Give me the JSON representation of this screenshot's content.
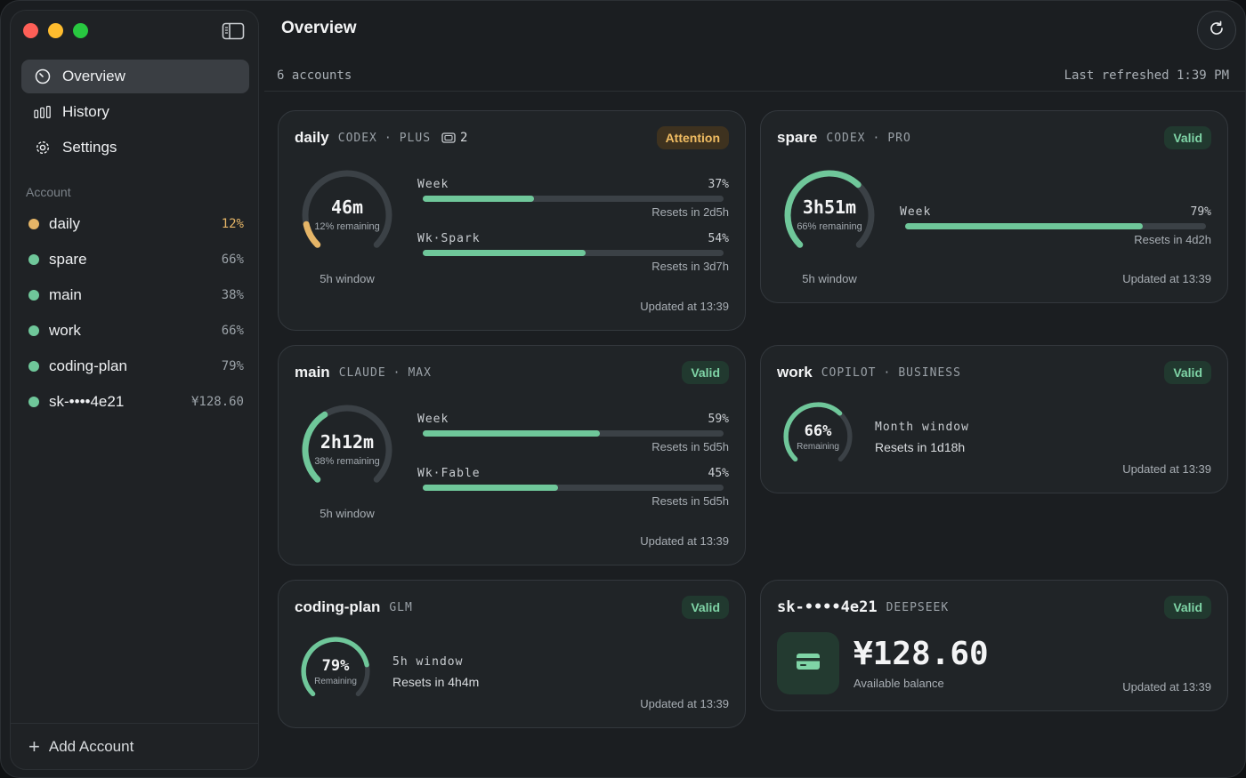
{
  "main_title": "Overview",
  "nav": [
    {
      "label": "Overview",
      "icon": "gauge-icon",
      "active": true
    },
    {
      "label": "History",
      "icon": "bar-chart-icon",
      "active": false
    },
    {
      "label": "Settings",
      "icon": "gear-icon",
      "active": false
    }
  ],
  "account_heading": "Account",
  "accounts": [
    {
      "name": "daily",
      "value": "12%",
      "status_color": "#e5b567"
    },
    {
      "name": "spare",
      "value": "66%",
      "status_color": "#6fc79a"
    },
    {
      "name": "main",
      "value": "38%",
      "status_color": "#6fc79a"
    },
    {
      "name": "work",
      "value": "66%",
      "status_color": "#6fc79a"
    },
    {
      "name": "coding-plan",
      "value": "79%",
      "status_color": "#6fc79a"
    },
    {
      "name": "sk-••••4e21",
      "value": "¥128.60",
      "status_color": "#6fc79a"
    }
  ],
  "add_account": "Add Account",
  "subbar": {
    "count": "6 accounts",
    "refreshed": "Last refreshed 1:39 PM"
  },
  "colors": {
    "accent": "#6fc79a",
    "warn": "#e5b567",
    "track": "#3b4146"
  },
  "cards": {
    "daily": {
      "name": "daily",
      "provider": "CODEX",
      "plan": "PLUS",
      "seats": "2",
      "badge": "Attention",
      "gauge": {
        "main": "46m",
        "sub": "12% remaining",
        "fraction": 0.12,
        "color": "#e5b567"
      },
      "window": "5h window",
      "bars": [
        {
          "label": "Week",
          "pct": "37%",
          "fraction": 0.37,
          "reset": "Resets in 2d5h"
        },
        {
          "label": "Wk·Spark",
          "pct": "54%",
          "fraction": 0.54,
          "reset": "Resets in 3d7h"
        }
      ],
      "updated": "Updated at 13:39"
    },
    "spare": {
      "name": "spare",
      "provider": "CODEX",
      "plan": "PRO",
      "badge": "Valid",
      "gauge": {
        "main": "3h51m",
        "sub": "66% remaining",
        "fraction": 0.66,
        "color": "#6fc79a"
      },
      "window": "5h window",
      "bars": [
        {
          "label": "Week",
          "pct": "79%",
          "fraction": 0.79,
          "reset": "Resets in 4d2h"
        }
      ],
      "updated": "Updated at 13:39"
    },
    "main": {
      "name": "main",
      "provider": "CLAUDE",
      "plan": "MAX",
      "badge": "Valid",
      "gauge": {
        "main": "2h12m",
        "sub": "38% remaining",
        "fraction": 0.38,
        "color": "#6fc79a"
      },
      "window": "5h window",
      "bars": [
        {
          "label": "Week",
          "pct": "59%",
          "fraction": 0.59,
          "reset": "Resets in 5d5h"
        },
        {
          "label": "Wk·Fable",
          "pct": "45%",
          "fraction": 0.45,
          "reset": "Resets in 5d5h"
        }
      ],
      "updated": "Updated at 13:39"
    },
    "work": {
      "name": "work",
      "provider": "COPILOT",
      "plan": "BUSINESS",
      "badge": "Valid",
      "gauge": {
        "main": "66%",
        "sub": "Remaining",
        "fraction": 0.66,
        "color": "#6fc79a"
      },
      "info_title": "Month window",
      "info_sub": "Resets in 1d18h",
      "updated": "Updated at 13:39"
    },
    "coding": {
      "name": "coding-plan",
      "provider": "GLM",
      "badge": "Valid",
      "gauge": {
        "main": "79%",
        "sub": "Remaining",
        "fraction": 0.79,
        "color": "#6fc79a"
      },
      "info_title": "5h window",
      "info_sub": "Resets in 4h4m",
      "updated": "Updated at 13:39"
    },
    "sk": {
      "name": "sk-••••4e21",
      "provider": "DEEPSEEK",
      "badge": "Valid",
      "balance": "¥128.60",
      "balance_label": "Available balance",
      "updated": "Updated at 13:39"
    }
  }
}
